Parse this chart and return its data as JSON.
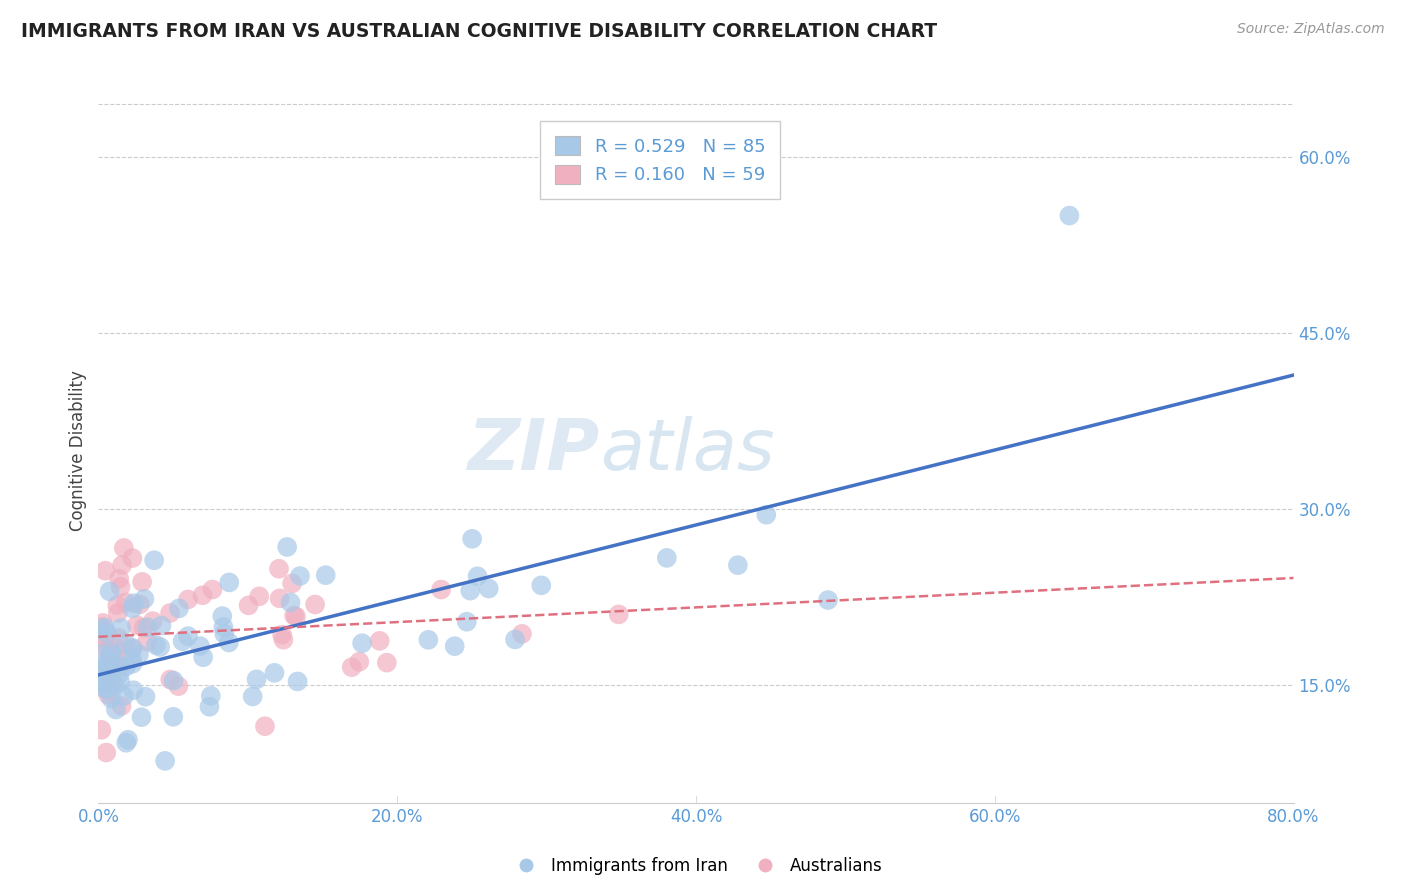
{
  "title": "IMMIGRANTS FROM IRAN VS AUSTRALIAN COGNITIVE DISABILITY CORRELATION CHART",
  "source": "Source: ZipAtlas.com",
  "ylabel": "Cognitive Disability",
  "legend_labels": [
    "Immigrants from Iran",
    "Australians"
  ],
  "legend_r": [
    0.529,
    0.16
  ],
  "legend_n": [
    85,
    59
  ],
  "blue_color": "#a8c8e8",
  "pink_color": "#f0b0c0",
  "trend_blue": "#4472c4",
  "trend_pink": "#e07080",
  "watermark_zip": "ZIP",
  "watermark_atlas": "atlas",
  "xmin": 0.0,
  "xmax": 0.8,
  "ymin": 0.05,
  "ymax": 0.65,
  "xticks": [
    0.0,
    0.2,
    0.4,
    0.6,
    0.8
  ],
  "yticks": [
    0.15,
    0.3,
    0.45,
    0.6
  ],
  "ytick_labels": [
    "15.0%",
    "30.0%",
    "45.0%",
    "60.0%"
  ],
  "xtick_labels": [
    "0.0%",
    "20.0%",
    "40.0%",
    "60.0%",
    "80.0%"
  ],
  "blue_seed": 42,
  "pink_seed": 7,
  "title_color": "#222222",
  "source_color": "#999999",
  "tick_color": "#5b9bd5",
  "ylabel_color": "#444444",
  "grid_color": "#cccccc"
}
